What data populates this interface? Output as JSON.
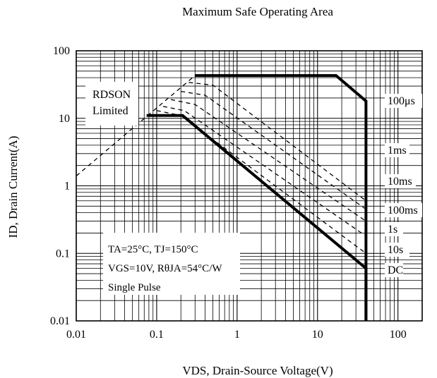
{
  "chart_data": {
    "type": "line",
    "title": "Maximum Safe Operating Area",
    "xlabel": "VDS, Drain-Source Voltage(V)",
    "ylabel": "ID, Drain Current(A)",
    "xscale": "log",
    "yscale": "log",
    "xlim": [
      0.01,
      200
    ],
    "ylim": [
      0.01,
      100
    ],
    "x_ticks": [
      "0.01",
      "0.1",
      "1",
      "10",
      "100"
    ],
    "y_ticks": [
      "0.01",
      "0.1",
      "1",
      "10",
      "100"
    ],
    "grid": true,
    "rdson_label": [
      "RDSON",
      "Limited"
    ],
    "conditions": [
      "TA=25°C, TJ=150°C",
      "VGS=10V, RθJA=54°C/W",
      "Single Pulse"
    ],
    "rdson_line": {
      "style": "dashed",
      "x": [
        0.01,
        0.3
      ],
      "y": [
        1.4,
        43
      ]
    },
    "series": [
      {
        "name": "100μs",
        "style": "bold",
        "x": [
          0.3,
          17,
          40,
          40
        ],
        "y": [
          43,
          43,
          18,
          0.01
        ]
      },
      {
        "name": "1ms",
        "style": "dashed",
        "x": [
          0.25,
          0.5,
          40
        ],
        "y": [
          34,
          31,
          0.6
        ]
      },
      {
        "name": "10ms",
        "style": "dashed",
        "x": [
          0.2,
          0.4,
          40
        ],
        "y": [
          25,
          22,
          0.45
        ]
      },
      {
        "name": "100ms",
        "style": "dashed",
        "x": [
          0.15,
          0.3,
          40
        ],
        "y": [
          19,
          16,
          0.3
        ]
      },
      {
        "name": "1s",
        "style": "dashed",
        "x": [
          0.12,
          0.22,
          40
        ],
        "y": [
          15,
          13,
          0.18
        ]
      },
      {
        "name": "10s",
        "style": "dashed",
        "x": [
          0.1,
          0.2,
          40
        ],
        "y": [
          13,
          11,
          0.1
        ]
      },
      {
        "name": "DC",
        "style": "bold",
        "x": [
          0.075,
          0.21,
          40,
          40
        ],
        "y": [
          11,
          11,
          0.06,
          0.01
        ]
      }
    ]
  }
}
